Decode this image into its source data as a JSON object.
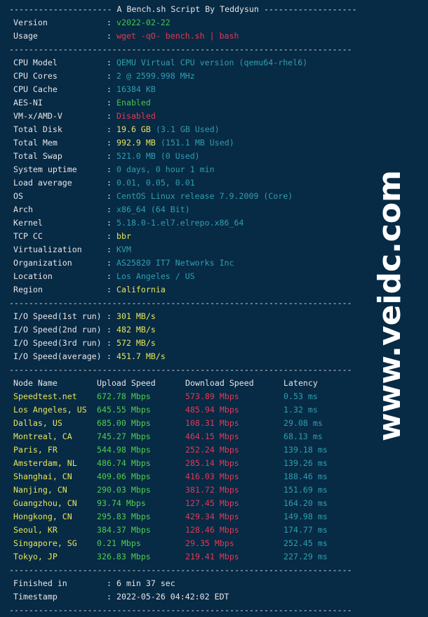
{
  "header": {
    "title_line": "--------------------- A Bench.sh Script By Teddysun -------------------"
  },
  "divider": "----------------------------------------------------------------------",
  "intro": [
    {
      "label": "Version",
      "value": "v2022-02-22",
      "color": "green"
    },
    {
      "label": "Usage",
      "value": "wget -qO- bench.sh | bash",
      "color": "red"
    }
  ],
  "system": [
    {
      "label": "CPU Model",
      "value": "QEMU Virtual CPU version (qemu64-rhel6)",
      "color": "cyan"
    },
    {
      "label": "CPU Cores",
      "value": "2 @ 2599.998 MHz",
      "color": "cyan"
    },
    {
      "label": "CPU Cache",
      "value": "16384 KB",
      "color": "cyan"
    },
    {
      "label": "AES-NI",
      "value": "Enabled",
      "color": "green"
    },
    {
      "label": "VM-x/AMD-V",
      "value": "Disabled",
      "color": "red"
    },
    {
      "label": "Total Disk",
      "value": "19.6 GB",
      "color": "yellow",
      "extra": "(3.1 GB Used)"
    },
    {
      "label": "Total Mem",
      "value": "992.9 MB",
      "color": "yellow",
      "extra": "(151.1 MB Used)"
    },
    {
      "label": "Total Swap",
      "value": "521.0 MB (0 Used)",
      "color": "cyan"
    },
    {
      "label": "System uptime",
      "value": "0 days, 0 hour 1 min",
      "color": "cyan"
    },
    {
      "label": "Load average",
      "value": "0.01, 0.05, 0.01",
      "color": "cyan"
    },
    {
      "label": "OS",
      "value": "CentOS Linux release 7.9.2009 (Core)",
      "color": "cyan"
    },
    {
      "label": "Arch",
      "value": "x86_64 (64 Bit)",
      "color": "cyan"
    },
    {
      "label": "Kernel",
      "value": "5.18.0-1.el7.elrepo.x86_64",
      "color": "cyan"
    },
    {
      "label": "TCP CC",
      "value": "bbr",
      "color": "yellow"
    },
    {
      "label": "Virtualization",
      "value": "KVM",
      "color": "cyan"
    },
    {
      "label": "Organization",
      "value": "AS25820 IT7 Networks Inc",
      "color": "cyan"
    },
    {
      "label": "Location",
      "value": "Los Angeles / US",
      "color": "cyan"
    },
    {
      "label": "Region",
      "value": "California",
      "color": "yellow"
    }
  ],
  "io": [
    {
      "label": "I/O Speed(1st run)",
      "value": "301 MB/s"
    },
    {
      "label": "I/O Speed(2nd run)",
      "value": "482 MB/s"
    },
    {
      "label": "I/O Speed(3rd run)",
      "value": "572 MB/s"
    },
    {
      "label": "I/O Speed(average)",
      "value": "451.7 MB/s"
    }
  ],
  "speedtest": {
    "columns": [
      "Node Name",
      "Upload Speed",
      "Download Speed",
      "Latency"
    ],
    "rows": [
      [
        "Speedtest.net",
        "672.78 Mbps",
        "573.89 Mbps",
        "0.53 ms"
      ],
      [
        "Los Angeles, US",
        "645.55 Mbps",
        "485.94 Mbps",
        "1.32 ms"
      ],
      [
        "Dallas, US",
        "685.00 Mbps",
        "108.31 Mbps",
        "29.08 ms"
      ],
      [
        "Montreal, CA",
        "745.27 Mbps",
        "464.15 Mbps",
        "68.13 ms"
      ],
      [
        "Paris, FR",
        "544.98 Mbps",
        "252.24 Mbps",
        "139.18 ms"
      ],
      [
        "Amsterdam, NL",
        "486.74 Mbps",
        "285.14 Mbps",
        "139.26 ms"
      ],
      [
        "Shanghai, CN",
        "409.06 Mbps",
        "416.03 Mbps",
        "188.46 ms"
      ],
      [
        "Nanjing, CN",
        "290.03 Mbps",
        "381.72 Mbps",
        "151.69 ms"
      ],
      [
        "Guangzhou, CN",
        "93.74 Mbps",
        "127.45 Mbps",
        "164.20 ms"
      ],
      [
        "Hongkong, CN",
        "295.83 Mbps",
        "429.34 Mbps",
        "149.98 ms"
      ],
      [
        "Seoul, KR",
        "384.37 Mbps",
        "128.46 Mbps",
        "174.77 ms"
      ],
      [
        "Singapore, SG",
        "0.21 Mbps",
        "29.35 Mbps",
        "252.45 ms"
      ],
      [
        "Tokyo, JP",
        "326.83 Mbps",
        "219.41 Mbps",
        "227.29 ms"
      ]
    ]
  },
  "footer": [
    {
      "label": "Finished in",
      "value": "6 min 37 sec"
    },
    {
      "label": "Timestamp",
      "value": "2022-05-26 04:42:02 EDT"
    }
  ],
  "separator": ":",
  "watermark": "www.veidc.com",
  "colors": {
    "background": "#072a45",
    "green": "#45c64a",
    "red": "#e03a55",
    "cyan": "#2f9fb0",
    "yellow": "#e6e65a",
    "white": "#e6e6e6"
  }
}
